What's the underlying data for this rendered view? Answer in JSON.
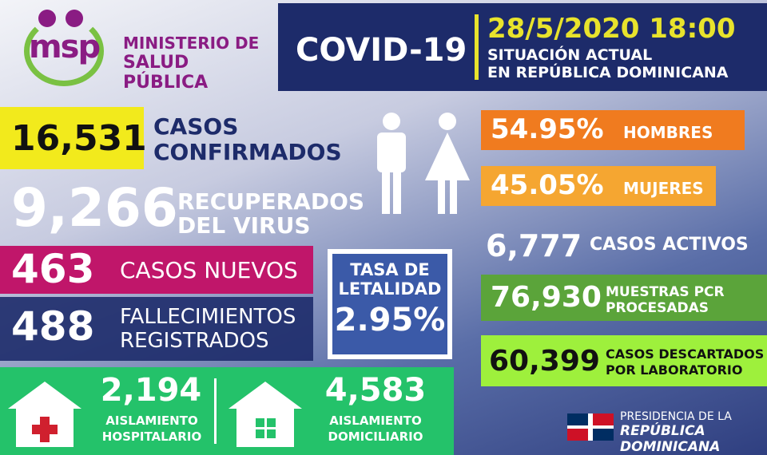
{
  "logo": {
    "brand": "msp",
    "line1": "MINISTERIO DE",
    "line2": "SALUD PÚBLICA"
  },
  "header": {
    "title": "COVID-19",
    "datetime": "28/5/2020 18:00",
    "subtitle1": "SITUACIÓN ACTUAL",
    "subtitle2": "EN REPÚBLICA DOMINICANA"
  },
  "confirmed": {
    "value": "16,531",
    "label1": "CASOS",
    "label2": "CONFIRMADOS"
  },
  "recovered": {
    "value": "9,266",
    "label1": "RECUPERADOS",
    "label2": "DEL VIRUS"
  },
  "new_cases": {
    "value": "463",
    "label": "CASOS NUEVOS"
  },
  "deaths": {
    "value": "488",
    "label1": "FALLECIMIENTOS",
    "label2": "REGISTRADOS"
  },
  "lethality": {
    "label1": "TASA DE",
    "label2": "LETALIDAD",
    "value": "2.95%"
  },
  "hospital_isolation": {
    "value": "2,194",
    "label1": "AISLAMIENTO",
    "label2": "HOSPITALARIO",
    "icon": "hospital-icon"
  },
  "home_isolation": {
    "value": "4,583",
    "label1": "AISLAMIENTO",
    "label2": "DOMICILIARIO",
    "icon": "house-icon"
  },
  "men": {
    "value": "54.95%",
    "label": "HOMBRES"
  },
  "women": {
    "value": "45.05%",
    "label": "MUJERES"
  },
  "active": {
    "value": "6,777",
    "label": "CASOS ACTIVOS"
  },
  "pcr": {
    "value": "76,930",
    "label1": "MUESTRAS PCR",
    "label2": "PROCESADAS"
  },
  "discarded": {
    "value": "60,399",
    "label1": "CASOS DESCARTADOS",
    "label2": "POR LABORATORIO"
  },
  "presidency": {
    "line1": "PRESIDENCIA DE LA",
    "line2": "REPÚBLICA DOMINICANA"
  },
  "colors": {
    "navy": "#1d2b6a",
    "yellow": "#f2ea1c",
    "magenta": "#c0166a",
    "green": "#24c26a",
    "orange": "#f07b1f",
    "light_orange": "#f5a631",
    "pcr_green": "#5ba43a",
    "lime": "#9ef03c",
    "brand_purple": "#8a1c83"
  }
}
